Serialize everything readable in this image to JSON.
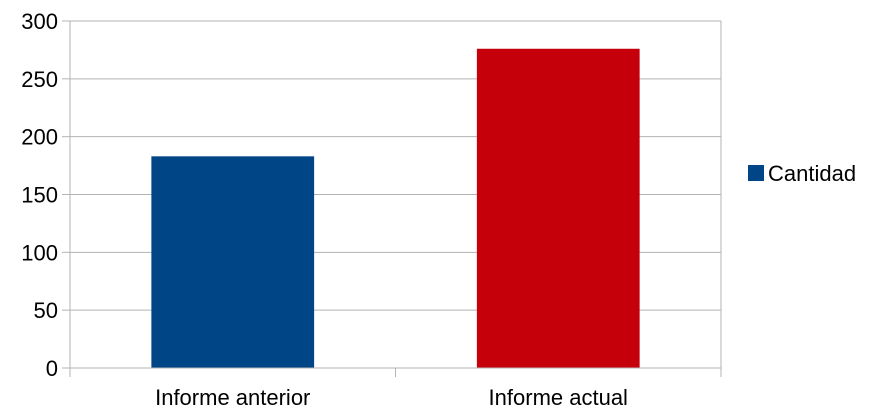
{
  "chart_data": {
    "type": "bar",
    "categories": [
      "Informe anterior",
      "Informe actual"
    ],
    "series": [
      {
        "name": "Cantidad",
        "values": [
          183,
          276
        ],
        "colors": [
          "#004586",
          "#c5000b"
        ]
      }
    ],
    "yticks": [
      "0",
      "50",
      "100",
      "150",
      "200",
      "250",
      "300"
    ],
    "ylim": [
      0,
      300
    ],
    "grid": true,
    "legend": "right",
    "title": "",
    "xlabel": "",
    "ylabel": ""
  }
}
